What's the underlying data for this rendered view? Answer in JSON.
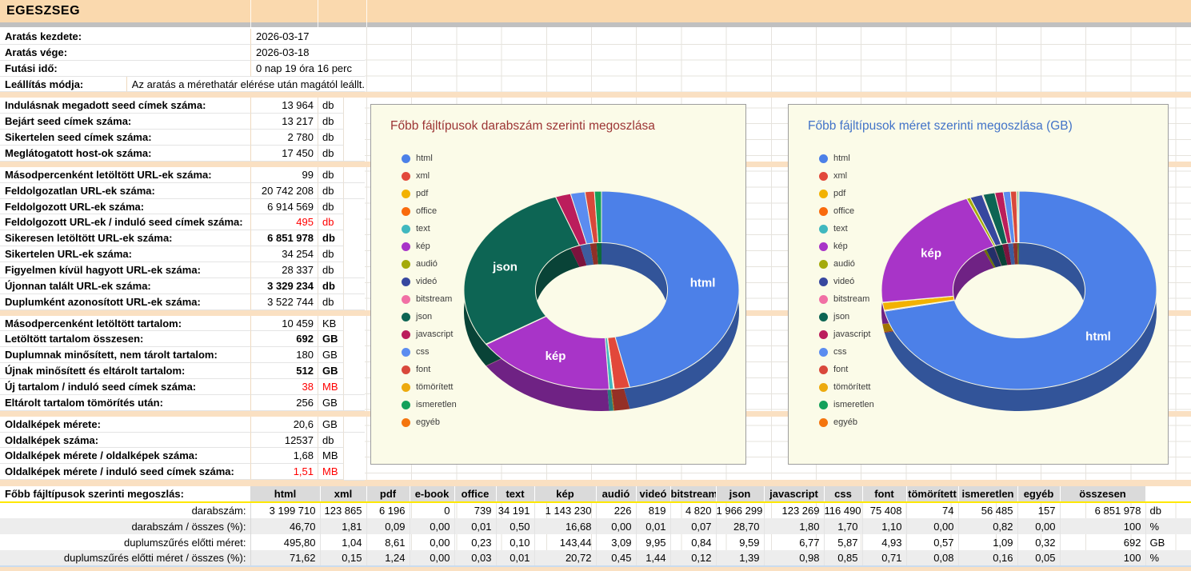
{
  "page": {
    "title": "EGESZSEG"
  },
  "stats": {
    "rows": [
      {
        "label": "Aratás kezdete:",
        "value": "2026-03-17",
        "unit": "",
        "wide": true
      },
      {
        "label": "Aratás vége:",
        "value": "2026-03-18",
        "unit": "",
        "wide": true
      },
      {
        "label": "Futási idő:",
        "value": "0 nap 19 óra 16 perc",
        "unit": "",
        "wide": true
      },
      {
        "label": "Leállítás módja:",
        "value": "Az aratás a mérethatár elérése után magától leállt.",
        "unit": "",
        "wide": true
      },
      {
        "sep": true
      },
      {
        "label": "Indulásnak megadott seed címek száma:",
        "value": "13 964",
        "unit": "db"
      },
      {
        "label": "Bejárt seed címek száma:",
        "value": "13 217",
        "unit": "db"
      },
      {
        "label": "Sikertelen seed címek száma:",
        "value": "2 780",
        "unit": "db"
      },
      {
        "label": "Meglátogatott host-ok száma:",
        "value": "17 450",
        "unit": "db"
      },
      {
        "sep": true
      },
      {
        "label": "Másodpercenként letöltött URL-ek száma:",
        "value": "99",
        "unit": "db"
      },
      {
        "label": "Feldolgozatlan URL-ek száma:",
        "value": "20 742 208",
        "unit": "db"
      },
      {
        "label": "Feldolgozott URL-ek száma:",
        "value": "6 914 569",
        "unit": "db"
      },
      {
        "label": "Feldolgozott URL-ek / induló seed címek száma:",
        "value": "495",
        "unit": "db",
        "red": true
      },
      {
        "label": "Sikeresen letöltött URL-ek száma:",
        "value": "6 851 978",
        "unit": "db",
        "bold": true
      },
      {
        "label": "Sikertelen URL-ek száma:",
        "value": "34 254",
        "unit": "db"
      },
      {
        "label": "Figyelmen kívül hagyott URL-ek száma:",
        "value": "28 337",
        "unit": "db"
      },
      {
        "label": "Újonnan talált URL-ek száma:",
        "value": "3 329 234",
        "unit": "db",
        "bold": true
      },
      {
        "label": "Duplumként azonosított URL-ek száma:",
        "value": "3 522 744",
        "unit": "db"
      },
      {
        "sep": true
      },
      {
        "label": "Másodpercenként letöltött tartalom:",
        "value": "10 459",
        "unit": "KB"
      },
      {
        "label": "Letöltött tartalom összesen:",
        "value": "692",
        "unit": "GB",
        "bold": true
      },
      {
        "label": "Duplumnak minősített, nem tárolt tartalom:",
        "value": "180",
        "unit": "GB"
      },
      {
        "label": "Újnak minősített és eltárolt tartalom:",
        "value": "512",
        "unit": "GB",
        "bold": true
      },
      {
        "label": "Új tartalom / induló seed címek száma:",
        "value": "38",
        "unit": "MB",
        "red": true
      },
      {
        "label": "Eltárolt tartalom tömörítés után:",
        "value": "256",
        "unit": "GB"
      },
      {
        "sep": true
      },
      {
        "label": "Oldalképek mérete:",
        "value": "20,6",
        "unit": "GB"
      },
      {
        "label": "Oldalképek száma:",
        "value": "12537",
        "unit": "db"
      },
      {
        "label": "Oldalképek mérete  / oldalképek száma:",
        "value": "1,68",
        "unit": "MB"
      },
      {
        "label": "Oldalképek mérete  / induló seed címek száma:",
        "value": "1,51",
        "unit": "MB",
        "red": true
      }
    ]
  },
  "chart_data": [
    {
      "type": "pie",
      "subtype": "3d-donut",
      "title": "Főbb fájltípusok darabszám szerinti megoszlása",
      "title_color": "#9c3434",
      "unit": "%",
      "legend_position": "left",
      "categories": [
        "html",
        "xml",
        "pdf",
        "office",
        "text",
        "kép",
        "audió",
        "videó",
        "bitstream",
        "json",
        "javascript",
        "css",
        "font",
        "tömörített",
        "ismeretlen",
        "egyéb"
      ],
      "values": [
        46.7,
        1.81,
        0.09,
        0.01,
        0.5,
        16.68,
        0.0,
        0.01,
        0.07,
        28.7,
        1.8,
        1.7,
        1.1,
        0.0,
        0.82,
        0.0
      ],
      "colors": [
        "#4c80e8",
        "#e2483a",
        "#f2b202",
        "#f96a0c",
        "#40b8bf",
        "#a834c8",
        "#a4aa0b",
        "#37479f",
        "#f170a5",
        "#0d6554",
        "#bb1d5c",
        "#5b8cf0",
        "#d9483b",
        "#edaa0e",
        "#14a05a",
        "#f4750e"
      ],
      "slice_label_min_pct": 10
    },
    {
      "type": "pie",
      "subtype": "3d-donut",
      "title": "Főbb fájltípusok méret szerinti megoszlása (GB)",
      "title_color": "#4273c8",
      "unit": "GB",
      "legend_position": "left",
      "categories": [
        "html",
        "xml",
        "pdf",
        "office",
        "text",
        "kép",
        "audió",
        "videó",
        "bitstream",
        "json",
        "javascript",
        "css",
        "font",
        "tömörített",
        "ismeretlen",
        "egyéb"
      ],
      "values": [
        495.8,
        1.04,
        8.61,
        0.23,
        0.1,
        143.44,
        3.09,
        9.95,
        0.84,
        9.59,
        6.77,
        5.87,
        4.93,
        0.57,
        1.09,
        0.32
      ],
      "colors": [
        "#4c80e8",
        "#e2483a",
        "#f2b202",
        "#f96a0c",
        "#40b8bf",
        "#a834c8",
        "#a4aa0b",
        "#37479f",
        "#f170a5",
        "#0d6554",
        "#bb1d5c",
        "#5b8cf0",
        "#d9483b",
        "#edaa0e",
        "#14a05a",
        "#f4750e"
      ],
      "slice_label_min_pct": 10
    }
  ],
  "file_table": {
    "corner_label": "Főbb fájltípusok szerinti megoszlás:",
    "columns": [
      "html",
      "xml",
      "pdf",
      "e-book",
      "office",
      "text",
      "kép",
      "audió",
      "videó",
      "bitstream",
      "json",
      "javascript",
      "css",
      "font",
      "tömörített",
      "ismeretlen",
      "egyéb",
      "összesen"
    ],
    "rows": [
      {
        "label": "darabszám:",
        "unit": "db",
        "striped": false,
        "values": [
          "3 199 710",
          "123 865",
          "6 196",
          "0",
          "739",
          "34 191",
          "1 143 230",
          "226",
          "819",
          "4 820",
          "1 966 299",
          "123 269",
          "116 490",
          "75 408",
          "74",
          "56 485",
          "157",
          "6 851 978"
        ]
      },
      {
        "label": "darabszám / összes (%):",
        "unit": "%",
        "striped": true,
        "values": [
          "46,70",
          "1,81",
          "0,09",
          "0,00",
          "0,01",
          "0,50",
          "16,68",
          "0,00",
          "0,01",
          "0,07",
          "28,70",
          "1,80",
          "1,70",
          "1,10",
          "0,00",
          "0,82",
          "0,00",
          "100"
        ]
      },
      {
        "label": "duplumszűrés előtti méret:",
        "unit": "GB",
        "striped": false,
        "values": [
          "495,80",
          "1,04",
          "8,61",
          "0,00",
          "0,23",
          "0,10",
          "143,44",
          "3,09",
          "9,95",
          "0,84",
          "9,59",
          "6,77",
          "5,87",
          "4,93",
          "0,57",
          "1,09",
          "0,32",
          "692"
        ]
      },
      {
        "label": "duplumszűrés előtti méret / összes (%):",
        "unit": "%",
        "striped": true,
        "values": [
          "71,62",
          "0,15",
          "1,24",
          "0,00",
          "0,03",
          "0,01",
          "20,72",
          "0,45",
          "1,44",
          "0,12",
          "1,39",
          "0,98",
          "0,85",
          "0,71",
          "0,08",
          "0,16",
          "0,05",
          "100"
        ]
      }
    ]
  }
}
